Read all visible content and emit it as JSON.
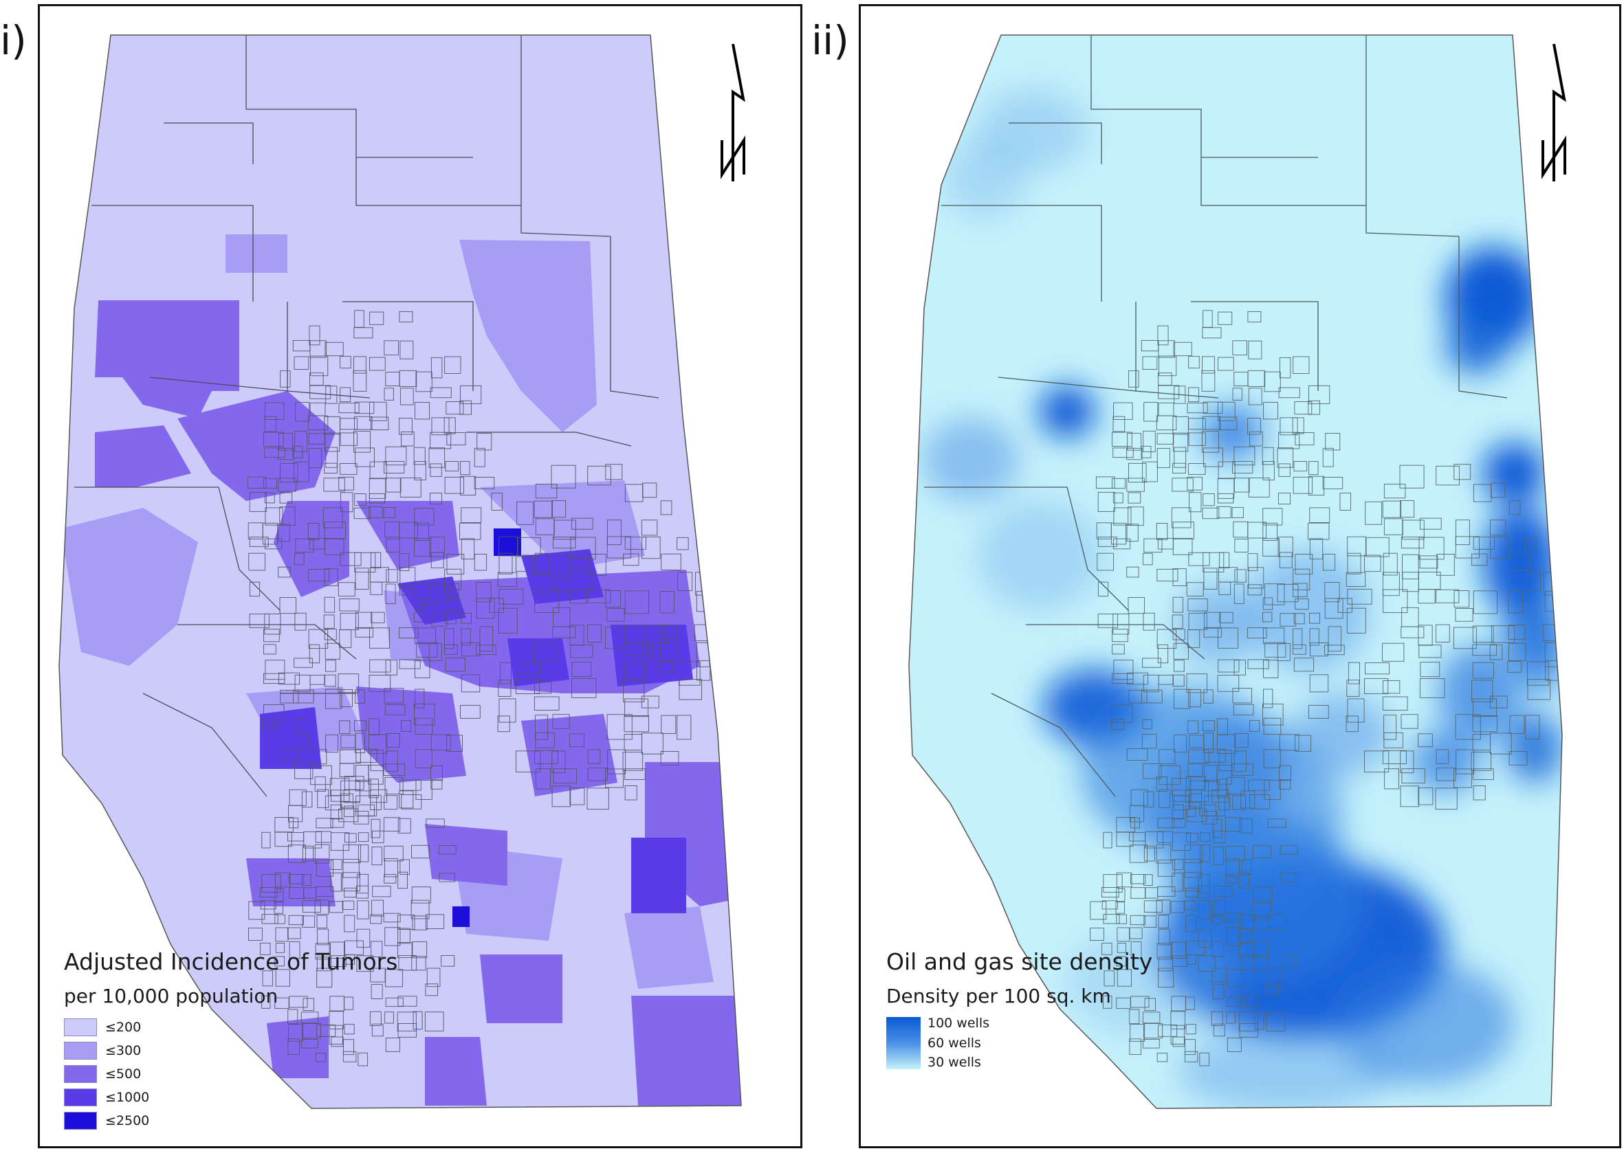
{
  "panels": [
    {
      "label": "i)",
      "legend": {
        "title": "Adjusted Incidence of Tumors",
        "subtitle": "per 10,000 population",
        "classes": [
          {
            "label": "≤200",
            "color": "#cccbfa"
          },
          {
            "label": "≤300",
            "color": "#a89df4"
          },
          {
            "label": "≤500",
            "color": "#8368ee"
          },
          {
            "label": "≤1000",
            "color": "#5a3be8"
          },
          {
            "label": "≤2500",
            "color": "#1c0fd9"
          }
        ]
      },
      "base_color": "#cccbfa",
      "boundary_color": "#4a4a5a"
    },
    {
      "label": "ii)",
      "legend": {
        "title": "Oil and gas site density",
        "subtitle": "Density per 100 sq. km",
        "ramp": [
          "100 wells",
          "60 wells",
          "30 wells"
        ],
        "ramp_colors": [
          "#0a5ad6",
          "#4a90e6",
          "#c5f1fb"
        ]
      },
      "base_color": "#c5f1fb",
      "boundary_color": "#4a5a60"
    }
  ]
}
